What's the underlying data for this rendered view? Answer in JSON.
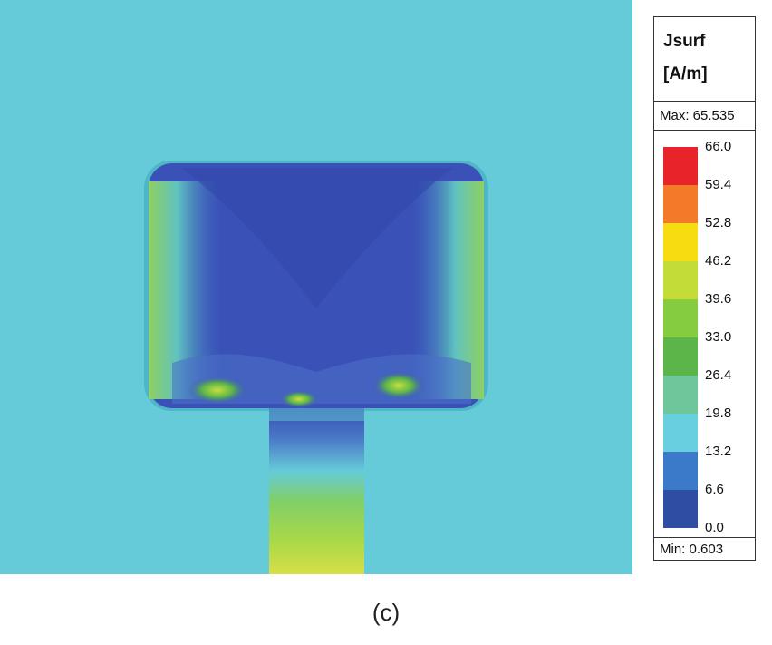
{
  "legend": {
    "title_line1": "Jsurf",
    "title_line2": "[A/m]",
    "max_label": "Max: 65.535",
    "min_label": "Min:  0.603",
    "ticks": [
      "66.0",
      "59.4",
      "52.8",
      "46.2",
      "39.6",
      "33.0",
      "26.4",
      "19.8",
      "13.2",
      "6.6",
      "0.0"
    ],
    "colors": [
      "#e8242a",
      "#f47a2a",
      "#f8dc12",
      "#c3dc38",
      "#85cc3e",
      "#5bb548",
      "#6ec79a",
      "#67cfe0",
      "#3b7ac8",
      "#2e4ea4"
    ]
  },
  "field_colors": {
    "background": "#66cbd8",
    "patch": "#3a52b8",
    "patch_edge": "#4fb6c8",
    "feed_top": "#3450b0",
    "feed_bottom": "#c8e050"
  },
  "caption": "(c)"
}
